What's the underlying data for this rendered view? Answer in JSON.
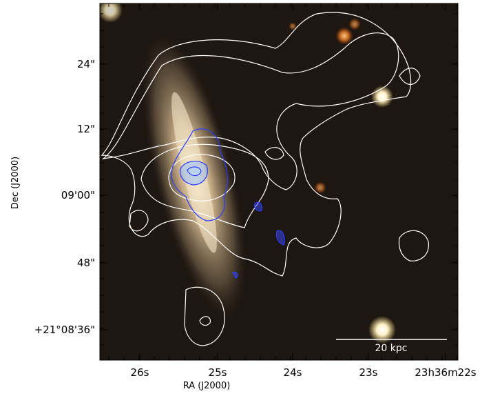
{
  "x_axis": {
    "label": "RA (J2000)",
    "ticks": [
      "26s",
      "25s",
      "24s",
      "23s",
      "23h36m22s"
    ]
  },
  "y_axis": {
    "label": "Dec (J2000)",
    "ticks": [
      "24\"",
      "12\"",
      "09'00\"",
      "48\"",
      "+21°08'36\""
    ]
  },
  "scale_bar": "20 kpc"
}
